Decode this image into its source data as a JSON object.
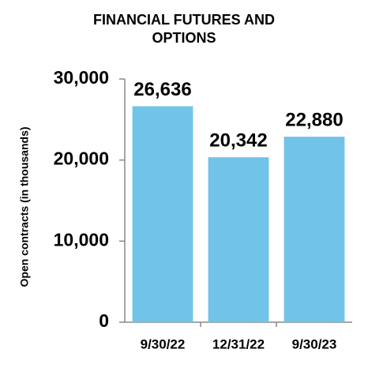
{
  "chart_data": {
    "type": "bar",
    "title": "FINANCIAL FUTURES AND OPTIONS",
    "y_label": "Open contracts (in thousands)",
    "categories": [
      "9/30/22",
      "12/31/22",
      "9/30/23"
    ],
    "values": [
      26636,
      20342,
      22880
    ],
    "value_labels": [
      "26,636",
      "20,342",
      "22,880"
    ],
    "color": "#72c3e8",
    "ylim": [
      0,
      30000
    ],
    "yticks": [
      {
        "value": 0,
        "label": "0"
      },
      {
        "value": 10000,
        "label": "10,000"
      },
      {
        "value": 20000,
        "label": "20,000"
      },
      {
        "value": 30000,
        "label": "30,000"
      }
    ]
  }
}
